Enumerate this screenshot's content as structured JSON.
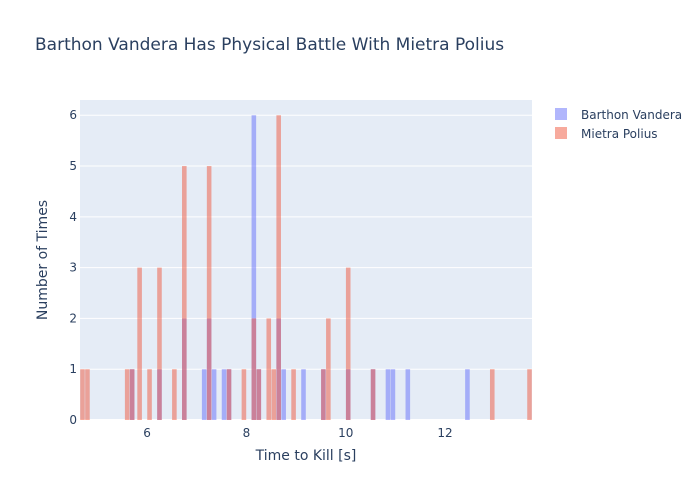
{
  "chart_data": {
    "type": "bar",
    "title": "Barthon Vandera Has Physical Battle With Mietra Polius",
    "xlabel": "Time to Kill [s]",
    "ylabel": "Number of Times",
    "xlim": [
      4.65,
      13.75
    ],
    "ylim": [
      0,
      6.3
    ],
    "xticks": [
      6,
      8,
      10,
      12
    ],
    "yticks": [
      0,
      1,
      2,
      3,
      4,
      5,
      6
    ],
    "bin_width": 0.1,
    "barmode": "overlay",
    "grid": true,
    "legend_position": "top-right",
    "series": [
      {
        "name": "Barthon Vandera",
        "color": "#636efa",
        "opacity": 0.5,
        "bins": [
          {
            "x": 5.7,
            "count": 1
          },
          {
            "x": 6.25,
            "count": 1
          },
          {
            "x": 6.75,
            "count": 2
          },
          {
            "x": 7.15,
            "count": 1
          },
          {
            "x": 7.25,
            "count": 2
          },
          {
            "x": 7.35,
            "count": 1
          },
          {
            "x": 7.55,
            "count": 1
          },
          {
            "x": 7.65,
            "count": 1
          },
          {
            "x": 8.15,
            "count": 6
          },
          {
            "x": 8.25,
            "count": 1
          },
          {
            "x": 8.65,
            "count": 2
          },
          {
            "x": 8.75,
            "count": 1
          },
          {
            "x": 9.15,
            "count": 1
          },
          {
            "x": 9.55,
            "count": 1
          },
          {
            "x": 10.05,
            "count": 1
          },
          {
            "x": 10.55,
            "count": 1
          },
          {
            "x": 10.85,
            "count": 1
          },
          {
            "x": 10.95,
            "count": 1
          },
          {
            "x": 11.25,
            "count": 1
          },
          {
            "x": 12.45,
            "count": 1
          }
        ]
      },
      {
        "name": "Mietra Polius",
        "color": "#ef553b",
        "opacity": 0.5,
        "bins": [
          {
            "x": 4.7,
            "count": 1
          },
          {
            "x": 4.8,
            "count": 1
          },
          {
            "x": 5.6,
            "count": 1
          },
          {
            "x": 5.7,
            "count": 1
          },
          {
            "x": 5.85,
            "count": 3
          },
          {
            "x": 6.05,
            "count": 1
          },
          {
            "x": 6.25,
            "count": 3
          },
          {
            "x": 6.55,
            "count": 1
          },
          {
            "x": 6.75,
            "count": 5
          },
          {
            "x": 7.25,
            "count": 5
          },
          {
            "x": 7.65,
            "count": 1
          },
          {
            "x": 7.95,
            "count": 1
          },
          {
            "x": 8.15,
            "count": 2
          },
          {
            "x": 8.25,
            "count": 1
          },
          {
            "x": 8.45,
            "count": 2
          },
          {
            "x": 8.55,
            "count": 1
          },
          {
            "x": 8.65,
            "count": 6
          },
          {
            "x": 8.95,
            "count": 1
          },
          {
            "x": 9.55,
            "count": 1
          },
          {
            "x": 9.65,
            "count": 2
          },
          {
            "x": 10.05,
            "count": 3
          },
          {
            "x": 10.55,
            "count": 1
          },
          {
            "x": 12.95,
            "count": 1
          },
          {
            "x": 13.7,
            "count": 1
          }
        ]
      }
    ]
  }
}
